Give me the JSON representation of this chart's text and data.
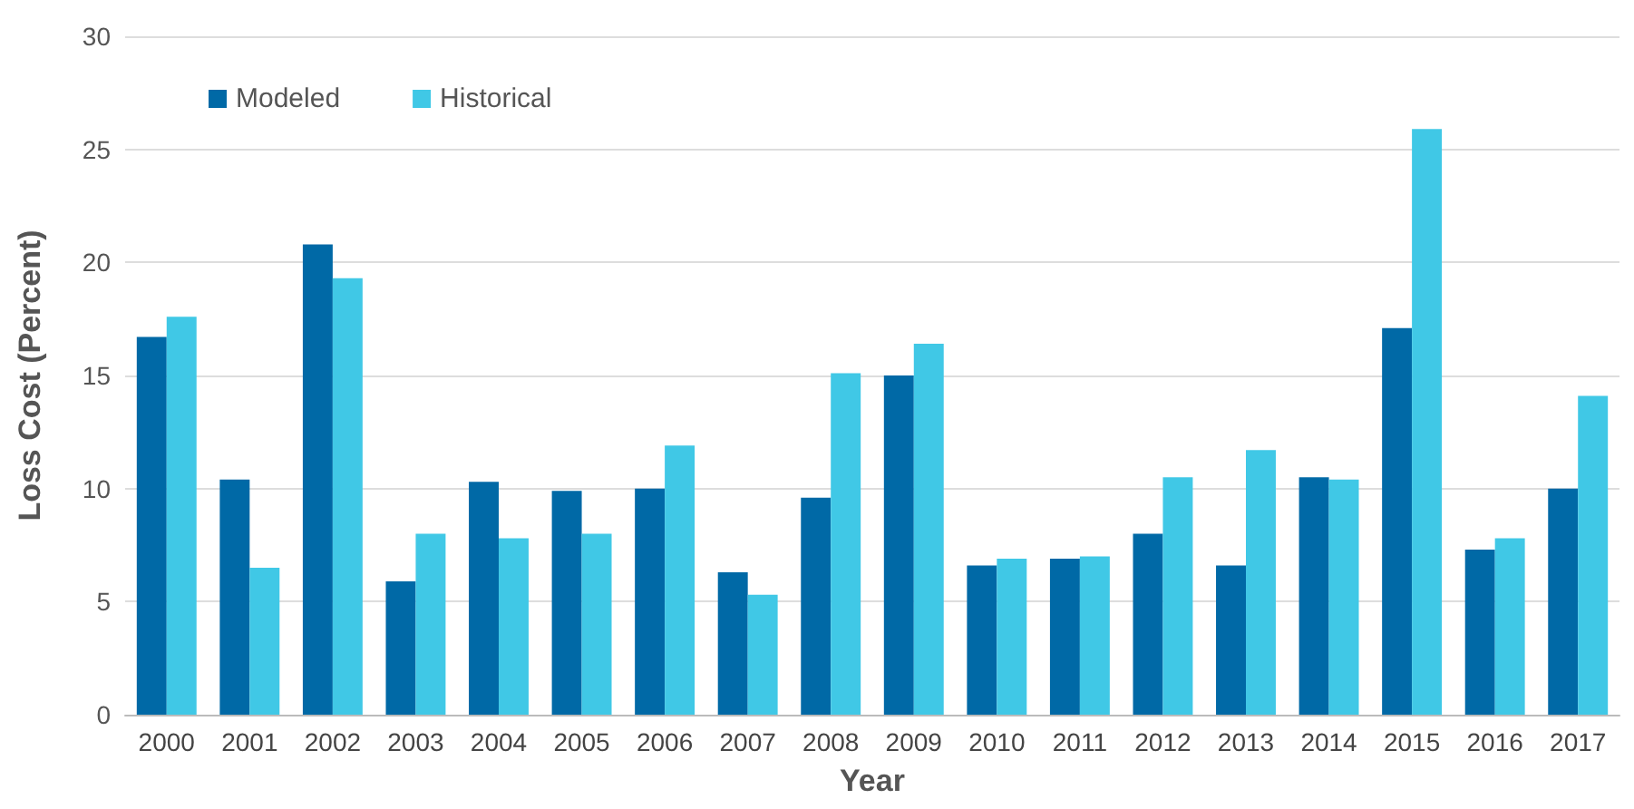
{
  "chart_data": {
    "type": "bar",
    "xlabel": "Year",
    "ylabel": "Loss Cost (Percent)",
    "categories": [
      "2000",
      "2001",
      "2002",
      "2003",
      "2004",
      "2005",
      "2006",
      "2007",
      "2008",
      "2009",
      "2010",
      "2011",
      "2012",
      "2013",
      "2014",
      "2015",
      "2016",
      "2017"
    ],
    "series": [
      {
        "name": "Modeled",
        "color": "#0069a6",
        "values": [
          16.7,
          10.4,
          20.8,
          5.9,
          10.3,
          9.9,
          10.0,
          6.3,
          9.6,
          15.0,
          6.6,
          6.9,
          8.0,
          6.6,
          10.5,
          17.1,
          7.3,
          10.0
        ]
      },
      {
        "name": "Historical",
        "color": "#40c8e6",
        "values": [
          17.6,
          6.5,
          19.3,
          8.0,
          7.8,
          8.0,
          11.9,
          5.3,
          15.1,
          16.4,
          6.9,
          7.0,
          10.5,
          11.7,
          10.4,
          25.9,
          7.8,
          14.1
        ]
      }
    ],
    "ylim": [
      0,
      30
    ],
    "yticks": [
      0,
      5,
      10,
      15,
      20,
      25,
      30
    ],
    "grid": "y",
    "legend": "top left"
  }
}
